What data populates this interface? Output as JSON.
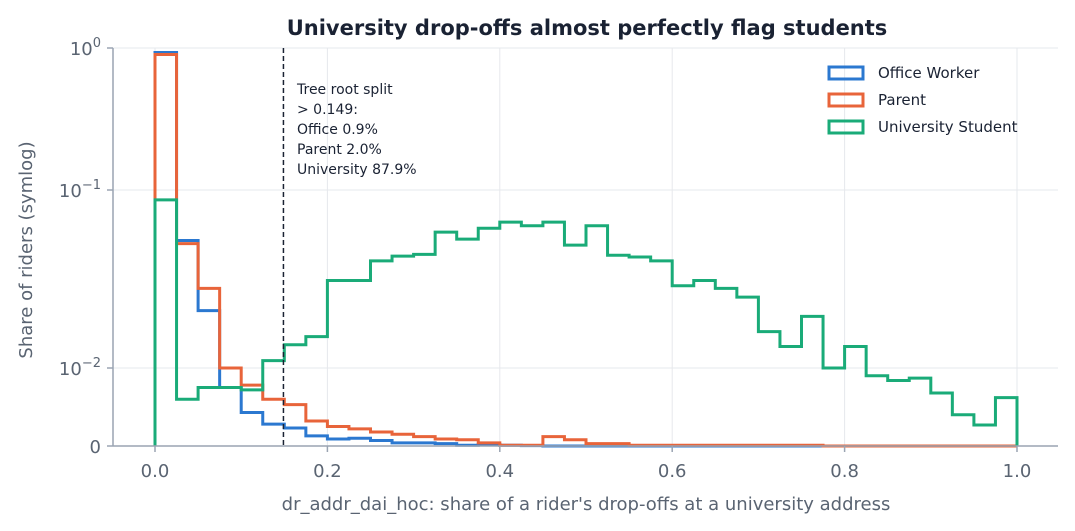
{
  "chart_data": {
    "type": "histogram-step",
    "title": "University drop-offs almost perfectly flag students",
    "xlabel": "dr_addr_dai_hoc: share of a rider's drop-offs at a university address",
    "ylabel": "Share of riders (symlog)",
    "xlim": [
      -0.05,
      1.05
    ],
    "yscale": "symlog",
    "linthresh": 0.01,
    "ylim": [
      0,
      1
    ],
    "grid": true,
    "legend_position": "top-right",
    "x_ticks": [
      {
        "value": 0.0,
        "label": "0.0"
      },
      {
        "value": 0.2,
        "label": "0.2"
      },
      {
        "value": 0.4,
        "label": "0.4"
      },
      {
        "value": 0.6,
        "label": "0.6"
      },
      {
        "value": 0.8,
        "label": "0.8"
      },
      {
        "value": 1.0,
        "label": "1.0"
      }
    ],
    "y_ticks": [
      {
        "value": 0,
        "base": "0",
        "exp": ""
      },
      {
        "value": 0.01,
        "base": "10",
        "exp": "−2"
      },
      {
        "value": 0.1,
        "base": "10",
        "exp": "−1"
      },
      {
        "value": 1,
        "base": "10",
        "exp": "0"
      }
    ],
    "bins": {
      "start": 0.0,
      "width": 0.025,
      "count": 40
    },
    "series": [
      {
        "name": "Office Worker",
        "color": "#2b78d0",
        "values": [
          0.93,
          0.052,
          0.021,
          0.0075,
          0.0043,
          0.0028,
          0.0023,
          0.0013,
          0.0009,
          0.001,
          0.0007,
          0.0004,
          0.0004,
          0.0003,
          0.0001,
          0.0002,
          0.0001,
          5e-05,
          0,
          0,
          0,
          0,
          0,
          0,
          0,
          0,
          0,
          0,
          0,
          0,
          0,
          0,
          0,
          0,
          0,
          0,
          0,
          0,
          0,
          0
        ]
      },
      {
        "name": "Parent",
        "color": "#e8643a",
        "values": [
          0.9,
          0.05,
          0.028,
          0.01,
          0.0078,
          0.006,
          0.0053,
          0.0032,
          0.0025,
          0.0022,
          0.0018,
          0.0015,
          0.0012,
          0.0009,
          0.0008,
          0.0004,
          0.0001,
          0.0001,
          0.0012,
          0.0008,
          0.0003,
          0.0003,
          0.0001,
          0.0001,
          0.0001,
          0.0001,
          0.0001,
          0.0001,
          0.0001,
          0.0001,
          0.0001,
          0.0,
          0.0,
          0.0,
          0.0,
          0.0,
          0.0,
          0.0,
          0.0,
          0.0
        ]
      },
      {
        "name": "University Student",
        "color": "#1aab78",
        "values": [
          0.088,
          0.006,
          0.0075,
          0.0075,
          0.0072,
          0.011,
          0.0135,
          0.015,
          0.031,
          0.031,
          0.04,
          0.0425,
          0.0435,
          0.058,
          0.053,
          0.061,
          0.066,
          0.063,
          0.066,
          0.049,
          0.063,
          0.043,
          0.042,
          0.04,
          0.029,
          0.031,
          0.028,
          0.025,
          0.016,
          0.0132,
          0.0195,
          0.01,
          0.0132,
          0.009,
          0.0084,
          0.0087,
          0.0068,
          0.004,
          0.0027,
          0.0062
        ]
      }
    ],
    "threshold": {
      "x": 0.149
    },
    "annotation_lines": [
      "Tree root split",
      "> 0.149:",
      "Office 0.9%",
      "Parent 2.0%",
      "University 87.9%"
    ]
  }
}
